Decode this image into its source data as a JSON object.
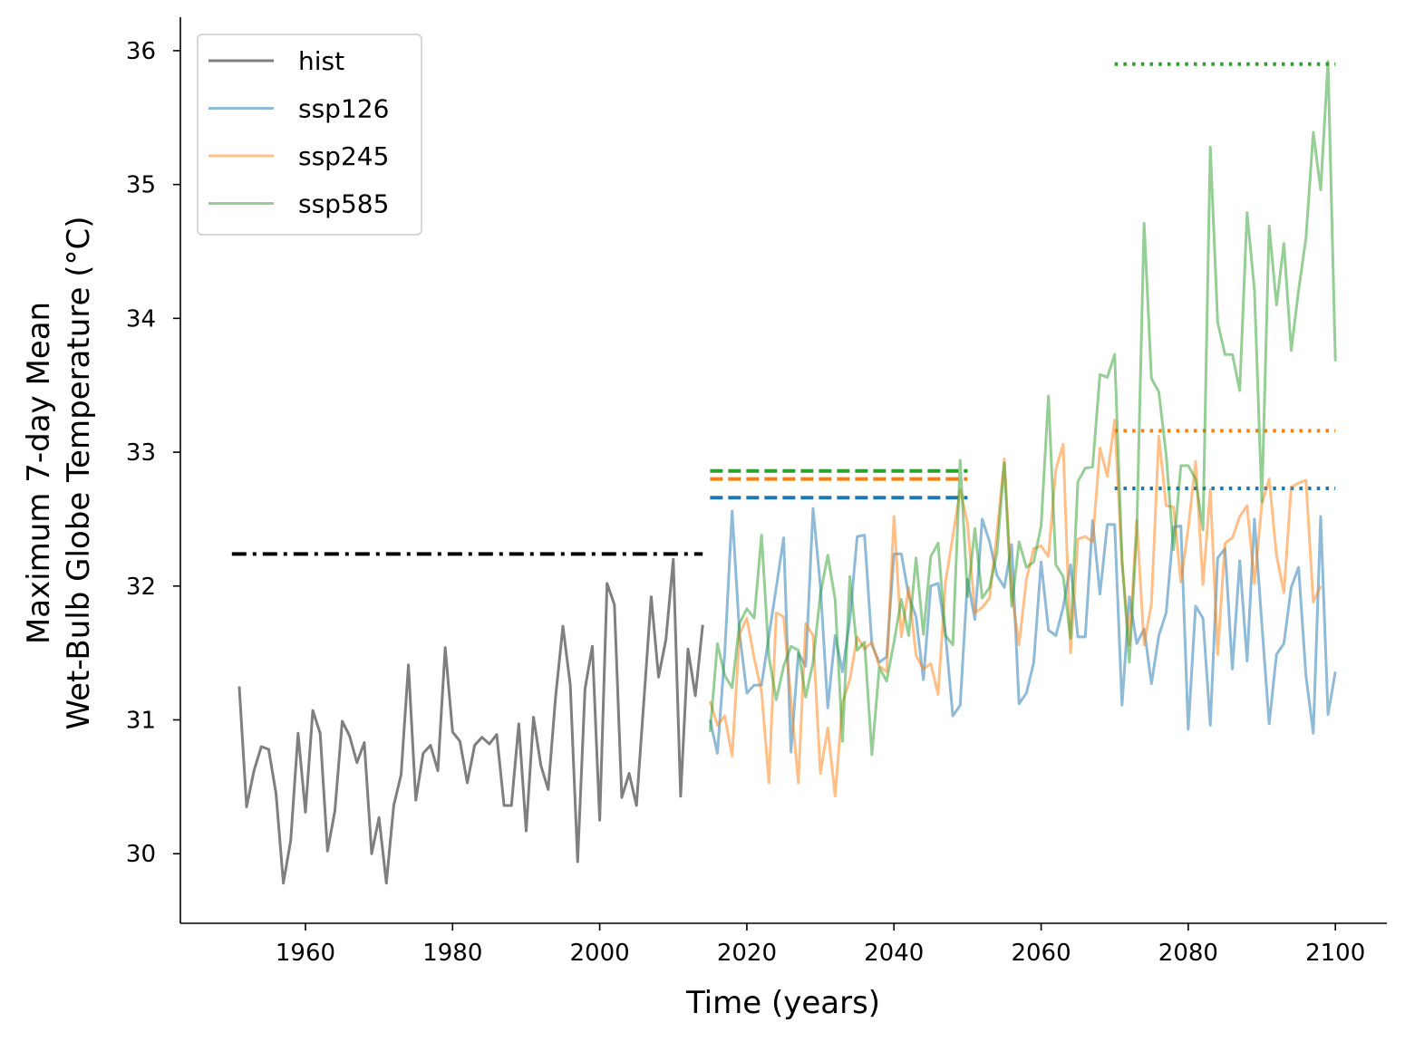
{
  "chart_data": {
    "type": "line",
    "xlabel": "Time (years)",
    "ylabel_lines": [
      "Maximum 7-day Mean",
      "Wet-Bulb Globe Temperature (°C)"
    ],
    "xlim": [
      1943,
      2107
    ],
    "ylim": [
      29.48,
      36.25
    ],
    "xticks": [
      1960,
      1980,
      2000,
      2020,
      2040,
      2060,
      2080,
      2100
    ],
    "yticks": [
      30,
      31,
      32,
      33,
      34,
      35,
      36
    ],
    "grid": false,
    "legend_position": "upper-left",
    "series": [
      {
        "name": "hist",
        "color": "#7f7f7f",
        "opacity": 1,
        "x_start": 1951,
        "values": [
          31.25,
          30.35,
          30.62,
          30.8,
          30.78,
          30.45,
          29.78,
          30.1,
          30.9,
          30.31,
          31.07,
          30.9,
          30.02,
          30.32,
          30.99,
          30.88,
          30.68,
          30.83,
          30.0,
          30.27,
          29.78,
          30.36,
          30.59,
          31.41,
          30.4,
          30.75,
          30.81,
          30.62,
          31.54,
          30.91,
          30.84,
          30.53,
          30.81,
          30.87,
          30.82,
          30.89,
          30.36,
          30.36,
          30.97,
          30.17,
          31.02,
          30.66,
          30.48,
          31.17,
          31.7,
          31.26,
          29.94,
          31.23,
          31.55,
          30.25,
          32.02,
          31.86,
          30.42,
          30.6,
          30.36,
          31.14,
          31.92,
          31.32,
          31.6,
          32.2,
          30.43,
          31.53,
          31.18,
          31.71
        ]
      },
      {
        "name": "ssp126",
        "color": "#1f77b4",
        "opacity": 0.5,
        "x_start": 2015,
        "values": [
          31.0,
          30.75,
          31.5,
          32.56,
          31.65,
          31.2,
          31.26,
          31.26,
          31.63,
          31.99,
          32.36,
          30.76,
          31.5,
          31.4,
          32.58,
          32.0,
          31.09,
          31.63,
          31.36,
          31.75,
          32.37,
          32.38,
          31.56,
          31.43,
          31.47,
          32.24,
          32.24,
          31.93,
          31.77,
          31.3,
          32.0,
          32.02,
          31.64,
          31.03,
          31.11,
          32.05,
          31.75,
          32.5,
          32.33,
          32.08,
          31.99,
          32.31,
          31.12,
          31.2,
          31.43,
          32.18,
          31.67,
          31.63,
          31.84,
          32.16,
          31.62,
          31.62,
          32.49,
          31.94,
          32.46,
          32.46,
          31.11,
          31.92,
          31.57,
          31.68,
          31.27,
          31.63,
          31.8,
          32.44,
          32.45,
          30.93,
          31.85,
          31.76,
          30.96,
          32.21,
          32.28,
          31.38,
          32.19,
          31.44,
          32.5,
          31.72,
          30.97,
          31.49,
          31.57,
          31.99,
          32.14,
          31.33,
          30.9,
          32.52,
          31.04,
          31.36
        ]
      },
      {
        "name": "ssp245",
        "color": "#ff7f0e",
        "opacity": 0.5,
        "x_start": 2015,
        "values": [
          31.14,
          30.96,
          31.03,
          30.73,
          31.64,
          31.76,
          31.46,
          31.21,
          30.53,
          31.8,
          31.77,
          31.15,
          30.53,
          31.72,
          31.63,
          30.6,
          30.94,
          30.43,
          31.13,
          31.3,
          31.62,
          31.53,
          31.58,
          31.4,
          31.36,
          32.52,
          31.62,
          31.99,
          31.48,
          31.38,
          31.42,
          31.19,
          32.03,
          32.37,
          32.72,
          32.47,
          31.8,
          31.84,
          31.91,
          32.4,
          32.95,
          31.95,
          31.56,
          32.05,
          32.28,
          32.3,
          32.22,
          32.87,
          33.06,
          31.5,
          32.35,
          32.37,
          32.33,
          33.03,
          32.82,
          33.24,
          32.17,
          31.56,
          32.49,
          31.56,
          31.87,
          33.12,
          32.6,
          32.59,
          32.03,
          32.43,
          32.93,
          32.01,
          32.72,
          31.49,
          32.32,
          32.36,
          32.52,
          32.6,
          32.02,
          32.61,
          32.8,
          32.23,
          31.95,
          32.74,
          32.77,
          32.79,
          31.88,
          32.0
        ]
      },
      {
        "name": "ssp585",
        "color": "#2ca02c",
        "opacity": 0.5,
        "x_start": 2015,
        "values": [
          30.91,
          31.57,
          31.33,
          31.24,
          31.72,
          31.83,
          31.76,
          32.38,
          31.47,
          31.15,
          31.4,
          31.55,
          31.52,
          31.17,
          31.43,
          31.94,
          32.23,
          31.9,
          30.84,
          32.07,
          31.52,
          31.58,
          30.74,
          31.39,
          31.29,
          31.58,
          31.9,
          31.63,
          32.21,
          31.64,
          32.22,
          32.32,
          31.63,
          31.56,
          32.94,
          31.92,
          32.43,
          31.91,
          31.99,
          32.25,
          32.92,
          31.85,
          32.33,
          32.14,
          32.18,
          32.45,
          33.42,
          32.16,
          32.07,
          31.61,
          32.78,
          32.88,
          32.89,
          33.58,
          33.56,
          33.73,
          32.2,
          31.43,
          32.4,
          34.71,
          33.55,
          33.45,
          32.98,
          32.27,
          32.9,
          32.9,
          32.8,
          32.42,
          35.28,
          33.97,
          33.73,
          33.73,
          33.46,
          34.79,
          34.21,
          32.63,
          34.69,
          34.1,
          34.56,
          33.76,
          34.21,
          34.6,
          35.39,
          34.96,
          35.92,
          33.68
        ]
      }
    ],
    "reference_lines": [
      {
        "color": "#000000",
        "style": "dashdot",
        "x_from": 1950,
        "x_to": 2014,
        "y": 32.24
      },
      {
        "color": "#1f77b4",
        "style": "dashed",
        "x_from": 2015,
        "x_to": 2050,
        "y": 32.66
      },
      {
        "color": "#ff7f0e",
        "style": "dashed",
        "x_from": 2015,
        "x_to": 2050,
        "y": 32.8
      },
      {
        "color": "#2ca02c",
        "style": "dashed",
        "x_from": 2015,
        "x_to": 2050,
        "y": 32.86
      },
      {
        "color": "#1f77b4",
        "style": "dotted",
        "x_from": 2070,
        "x_to": 2100,
        "y": 32.73
      },
      {
        "color": "#ff7f0e",
        "style": "dotted",
        "x_from": 2070,
        "x_to": 2100,
        "y": 33.16
      },
      {
        "color": "#2ca02c",
        "style": "dotted",
        "x_from": 2070,
        "x_to": 2100,
        "y": 35.9
      }
    ]
  }
}
